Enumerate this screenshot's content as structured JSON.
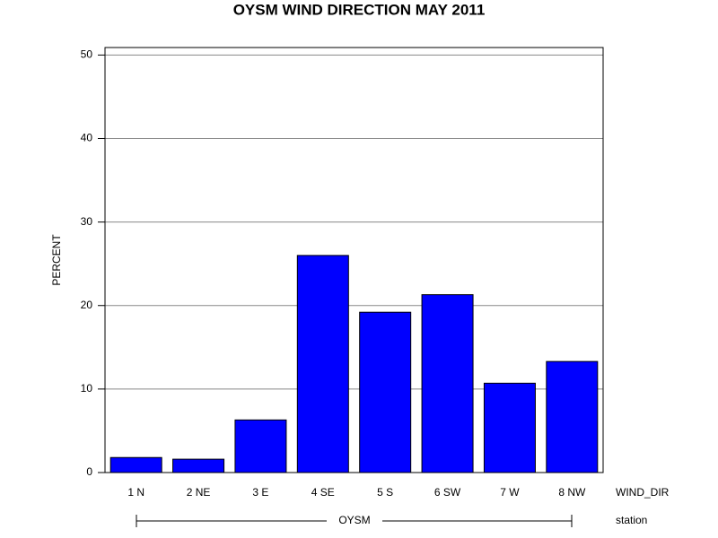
{
  "chart_data": {
    "type": "bar",
    "title": "OYSM WIND DIRECTION MAY 2011",
    "y_label": "PERCENT",
    "x_label": "WIND_DIR",
    "group_label": "station",
    "group": "OYSM",
    "categories": [
      "1 N",
      "2 NE",
      "3 E",
      "4 SE",
      "5 S",
      "6 SW",
      "7 W",
      "8 NW"
    ],
    "values": [
      1.8,
      1.6,
      6.3,
      26.0,
      19.2,
      21.3,
      10.7,
      13.3
    ],
    "color": "#0000ff",
    "ylim": [
      0,
      50.9
    ],
    "yticks": [
      0,
      10,
      20,
      30,
      40,
      50
    ],
    "grid": true
  }
}
